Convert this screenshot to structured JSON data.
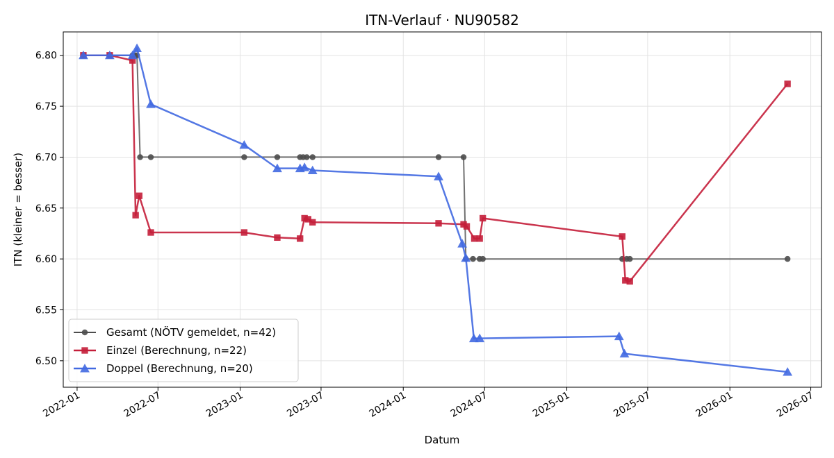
{
  "chart_data": {
    "type": "line",
    "title": "ITN-Verlauf · NU90582",
    "xlabel": "Datum",
    "ylabel": "ITN  (kleiner = besser)",
    "x_axis": "date",
    "xlim": [
      "2021-12-01",
      "2026-07-25"
    ],
    "ylim": [
      6.474,
      6.823
    ],
    "grid": true,
    "legend_position": "lower-left",
    "x_ticks": [
      "2022-01",
      "2022-07",
      "2023-01",
      "2023-07",
      "2024-01",
      "2024-07",
      "2025-01",
      "2025-07",
      "2026-01",
      "2026-07"
    ],
    "y_ticks": [
      "6.50",
      "6.55",
      "6.60",
      "6.65",
      "6.70",
      "6.75",
      "6.80"
    ],
    "series": [
      {
        "name": "Gesamt (NÖTV gemeldet, n=42)",
        "color": "#4d4d4d",
        "marker": "circle",
        "points": [
          {
            "x": "2022-01-15",
            "y": 6.8
          },
          {
            "x": "2022-03-15",
            "y": 6.8
          },
          {
            "x": "2022-05-05",
            "y": 6.8
          },
          {
            "x": "2022-05-10",
            "y": 6.8
          },
          {
            "x": "2022-05-15",
            "y": 6.8
          },
          {
            "x": "2022-05-22",
            "y": 6.7
          },
          {
            "x": "2022-06-15",
            "y": 6.7
          },
          {
            "x": "2023-01-10",
            "y": 6.7
          },
          {
            "x": "2023-03-25",
            "y": 6.7
          },
          {
            "x": "2023-05-15",
            "y": 6.7
          },
          {
            "x": "2023-05-22",
            "y": 6.7
          },
          {
            "x": "2023-05-30",
            "y": 6.7
          },
          {
            "x": "2023-06-12",
            "y": 6.7
          },
          {
            "x": "2024-03-20",
            "y": 6.7
          },
          {
            "x": "2024-05-15",
            "y": 6.7
          },
          {
            "x": "2024-05-20",
            "y": 6.6
          },
          {
            "x": "2024-06-05",
            "y": 6.6
          },
          {
            "x": "2024-06-20",
            "y": 6.6
          },
          {
            "x": "2024-06-27",
            "y": 6.6
          },
          {
            "x": "2025-05-05",
            "y": 6.6
          },
          {
            "x": "2025-05-15",
            "y": 6.6
          },
          {
            "x": "2025-05-22",
            "y": 6.6
          },
          {
            "x": "2026-05-10",
            "y": 6.6
          }
        ]
      },
      {
        "name": "Einzel (Berechnung, n=22)",
        "color": "#c41e3a",
        "marker": "square",
        "points": [
          {
            "x": "2022-01-15",
            "y": 6.8
          },
          {
            "x": "2022-03-15",
            "y": 6.8
          },
          {
            "x": "2022-05-05",
            "y": 6.795
          },
          {
            "x": "2022-05-12",
            "y": 6.643
          },
          {
            "x": "2022-05-20",
            "y": 6.662
          },
          {
            "x": "2022-06-15",
            "y": 6.626
          },
          {
            "x": "2023-01-10",
            "y": 6.626
          },
          {
            "x": "2023-03-25",
            "y": 6.621
          },
          {
            "x": "2023-05-15",
            "y": 6.62
          },
          {
            "x": "2023-05-25",
            "y": 6.64
          },
          {
            "x": "2023-06-02",
            "y": 6.639
          },
          {
            "x": "2023-06-12",
            "y": 6.636
          },
          {
            "x": "2024-03-20",
            "y": 6.635
          },
          {
            "x": "2024-05-15",
            "y": 6.634
          },
          {
            "x": "2024-05-22",
            "y": 6.632
          },
          {
            "x": "2024-06-08",
            "y": 6.62
          },
          {
            "x": "2024-06-20",
            "y": 6.62
          },
          {
            "x": "2024-06-27",
            "y": 6.64
          },
          {
            "x": "2025-05-05",
            "y": 6.622
          },
          {
            "x": "2025-05-12",
            "y": 6.579
          },
          {
            "x": "2025-05-22",
            "y": 6.578
          },
          {
            "x": "2026-05-10",
            "y": 6.772
          }
        ]
      },
      {
        "name": "Doppel (Berechnung, n=20)",
        "color": "#4169e1",
        "marker": "triangle",
        "points": [
          {
            "x": "2022-01-15",
            "y": 6.8
          },
          {
            "x": "2022-03-15",
            "y": 6.8
          },
          {
            "x": "2022-05-05",
            "y": 6.8
          },
          {
            "x": "2022-05-15",
            "y": 6.807
          },
          {
            "x": "2022-06-15",
            "y": 6.752
          },
          {
            "x": "2023-01-10",
            "y": 6.712
          },
          {
            "x": "2023-03-25",
            "y": 6.689
          },
          {
            "x": "2023-05-15",
            "y": 6.689
          },
          {
            "x": "2023-05-25",
            "y": 6.69
          },
          {
            "x": "2023-06-12",
            "y": 6.687
          },
          {
            "x": "2024-03-20",
            "y": 6.681
          },
          {
            "x": "2024-05-12",
            "y": 6.615
          },
          {
            "x": "2024-05-20",
            "y": 6.601
          },
          {
            "x": "2024-06-07",
            "y": 6.522
          },
          {
            "x": "2024-06-20",
            "y": 6.522
          },
          {
            "x": "2025-04-28",
            "y": 6.524
          },
          {
            "x": "2025-05-10",
            "y": 6.507
          },
          {
            "x": "2026-05-10",
            "y": 6.489
          }
        ]
      }
    ]
  }
}
